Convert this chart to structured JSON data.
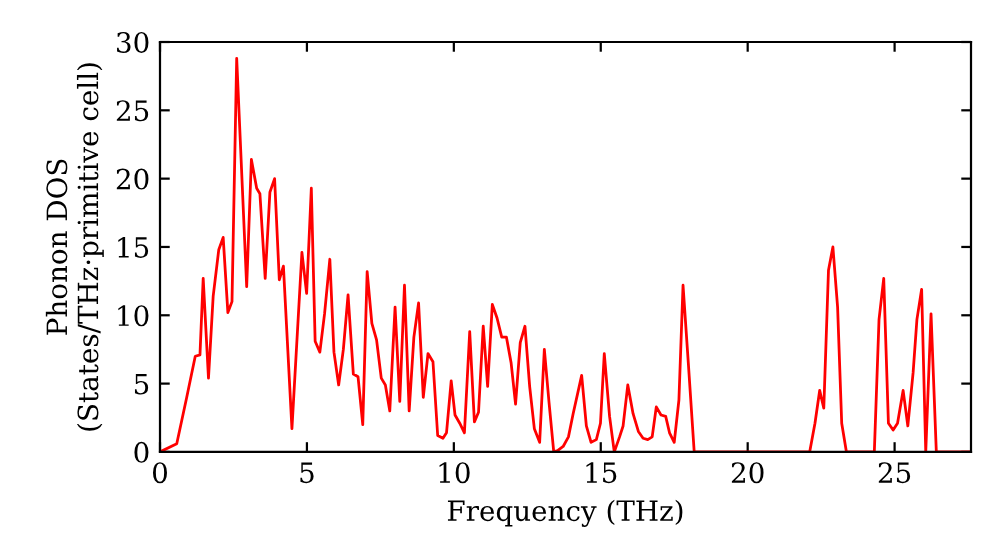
{
  "chart_data": {
    "type": "line",
    "xlabel": "Frequency (THz)",
    "ylabel": "Phonon DOS\n(States/THz·primitive cell)",
    "xlim": [
      0,
      27.6
    ],
    "ylim": [
      0,
      30
    ],
    "xticks": [
      0,
      5,
      10,
      15,
      20,
      25
    ],
    "yticks": [
      0,
      5,
      10,
      15,
      20,
      25,
      30
    ],
    "grid": false,
    "marker": "none",
    "line_style": "solid",
    "series": [
      {
        "color": "#ff0000",
        "x": [
          0,
          0.57,
          0.91,
          1.2,
          1.36,
          1.47,
          1.65,
          1.81,
          2.0,
          2.15,
          2.31,
          2.45,
          2.61,
          2.95,
          3.11,
          3.29,
          3.4,
          3.58,
          3.74,
          3.9,
          4.06,
          4.2,
          4.49,
          4.83,
          4.99,
          5.15,
          5.28,
          5.44,
          5.6,
          5.78,
          5.92,
          6.08,
          6.24,
          6.4,
          6.58,
          6.74,
          6.9,
          7.05,
          7.21,
          7.37,
          7.53,
          7.67,
          7.82,
          8.0,
          8.16,
          8.32,
          8.48,
          8.64,
          8.8,
          8.96,
          9.12,
          9.29,
          9.45,
          9.63,
          9.75,
          9.91,
          10.04,
          10.2,
          10.36,
          10.54,
          10.7,
          10.84,
          11.0,
          11.15,
          11.31,
          11.47,
          11.63,
          11.79,
          11.95,
          12.1,
          12.26,
          12.42,
          12.58,
          12.74,
          12.92,
          13.08,
          13.24,
          13.4,
          13.53,
          13.72,
          13.9,
          14.06,
          14.35,
          14.51,
          14.67,
          14.85,
          14.99,
          15.12,
          15.3,
          15.46,
          15.64,
          15.76,
          15.92,
          16.1,
          16.28,
          16.44,
          16.6,
          16.75,
          16.89,
          17.05,
          17.21,
          17.34,
          17.5,
          17.66,
          17.8,
          17.98,
          18.18,
          22.11,
          22.29,
          22.45,
          22.59,
          22.75,
          22.9,
          23.06,
          23.2,
          23.36,
          24.31,
          24.47,
          24.63,
          24.79,
          24.95,
          25.1,
          25.29,
          25.45,
          25.63,
          25.76,
          25.92,
          26.06,
          26.24,
          26.42,
          27.6
        ],
        "values": [
          0,
          0.6,
          4,
          7,
          7.1,
          12.7,
          5.4,
          11.4,
          14.8,
          15.7,
          10.2,
          11,
          28.8,
          12.1,
          21.4,
          19.3,
          18.9,
          12.7,
          19,
          20,
          12.6,
          13.6,
          1.7,
          14.6,
          11.6,
          19.3,
          8.1,
          7.3,
          10.1,
          14.1,
          7.3,
          4.9,
          7.5,
          11.5,
          5.7,
          5.5,
          2,
          13.2,
          9.4,
          8.2,
          5.4,
          4.9,
          3,
          10.6,
          3.7,
          12.2,
          3,
          8.4,
          10.9,
          4,
          7.2,
          6.6,
          1.2,
          1.0,
          1.4,
          5.2,
          2.7,
          2.1,
          1.4,
          8.8,
          2.2,
          2.9,
          9.2,
          4.8,
          10.8,
          9.8,
          8.4,
          8.4,
          6.5,
          3.5,
          8,
          9.2,
          4.8,
          1.7,
          0.7,
          7.5,
          3.6,
          0,
          0.1,
          0.4,
          1.1,
          2.8,
          5.6,
          1.9,
          0.7,
          0.9,
          2.1,
          7.2,
          2.6,
          0,
          1.1,
          1.9,
          4.9,
          2.8,
          1.5,
          1.0,
          0.9,
          1.1,
          3.3,
          2.7,
          2.6,
          1.4,
          0.7,
          3.8,
          12.2,
          6.5,
          0,
          0,
          2.1,
          4.5,
          3.2,
          13.3,
          15,
          10.6,
          2.1,
          0,
          0,
          9.7,
          12.7,
          2.1,
          1.6,
          2.1,
          4.5,
          1.9,
          5.8,
          9.7,
          11.9,
          0,
          10.1,
          0,
          0
        ]
      }
    ]
  }
}
